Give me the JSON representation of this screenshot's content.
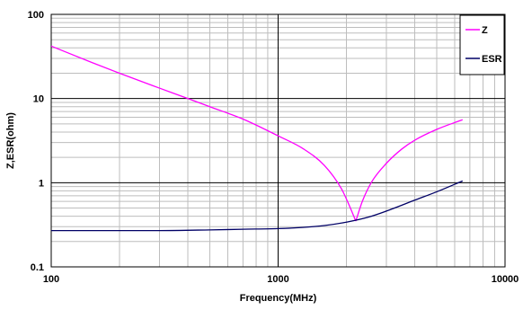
{
  "chart_data": {
    "type": "line",
    "title": "",
    "xlabel": "Frequency(MHz)",
    "ylabel": "Z,ESR(ohm)",
    "x_scale": "log",
    "y_scale": "log",
    "xlim": [
      100,
      10000
    ],
    "ylim": [
      0.1,
      100
    ],
    "x_ticks": [
      "100",
      "1000",
      "10000"
    ],
    "y_ticks": [
      "0.1",
      "1",
      "10",
      "100"
    ],
    "grid": true,
    "legend_position": "top-right",
    "series": [
      {
        "name": "Z",
        "color": "#ff00ff",
        "x": [
          100,
          150,
          200,
          300,
          400,
          500,
          700,
          1000,
          1300,
          1600,
          1900,
          2050,
          2200,
          2350,
          2600,
          3000,
          3500,
          4000,
          5000,
          6500
        ],
        "y": [
          42,
          27,
          20,
          13.3,
          10.0,
          8.0,
          5.7,
          3.6,
          2.5,
          1.6,
          0.85,
          0.55,
          0.35,
          0.6,
          1.05,
          1.7,
          2.5,
          3.2,
          4.3,
          5.6
        ]
      },
      {
        "name": "ESR",
        "color": "#000066",
        "x": [
          100,
          200,
          300,
          500,
          700,
          1000,
          1300,
          1600,
          2000,
          2500,
          3000,
          4000,
          5000,
          6500
        ],
        "y": [
          0.27,
          0.27,
          0.27,
          0.275,
          0.28,
          0.285,
          0.295,
          0.31,
          0.34,
          0.39,
          0.46,
          0.62,
          0.78,
          1.05
        ]
      }
    ]
  }
}
